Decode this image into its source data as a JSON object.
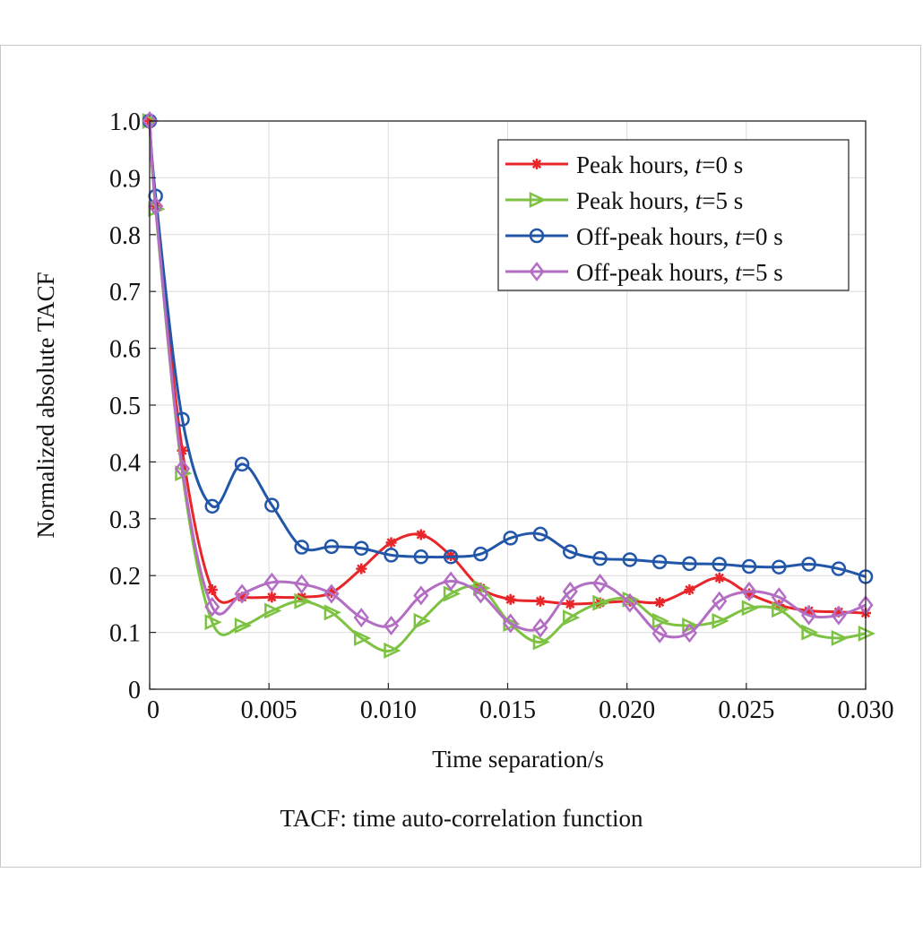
{
  "chart_data": {
    "type": "line",
    "title": "",
    "xlabel": "Time separation/s",
    "ylabel": "Normalized absolute TACF",
    "xlim": [
      0,
      0.03
    ],
    "ylim": [
      0,
      1.0
    ],
    "xticks": [
      0,
      0.005,
      0.01,
      0.015,
      0.02,
      0.025,
      0.03
    ],
    "xtick_labels": [
      "0",
      "0.005",
      "0.010",
      "0.015",
      "0.020",
      "0.025",
      "0.030"
    ],
    "yticks": [
      0,
      0.1,
      0.2,
      0.3,
      0.4,
      0.5,
      0.6,
      0.7,
      0.8,
      0.9,
      1.0
    ],
    "ytick_labels": [
      "0",
      "0.1",
      "0.2",
      "0.3",
      "0.4",
      "0.5",
      "0.6",
      "0.7",
      "0.8",
      "0.9",
      "1.0"
    ],
    "grid": true,
    "legend_position": "top-right",
    "x": [
      0,
      0.00025,
      0.00137,
      0.00262,
      0.00387,
      0.00512,
      0.00637,
      0.00762,
      0.00887,
      0.01012,
      0.01137,
      0.01262,
      0.01387,
      0.01512,
      0.01637,
      0.01762,
      0.01887,
      0.02012,
      0.02137,
      0.02262,
      0.02387,
      0.02512,
      0.02637,
      0.02762,
      0.02887,
      0.03
    ],
    "series": [
      {
        "name_prefix": "Peak hours, ",
        "name_var": "t",
        "name_suffix": "=0 s",
        "color": "#e8262a",
        "marker": "star",
        "values": [
          1.0,
          0.85,
          0.42,
          0.175,
          0.162,
          0.162,
          0.162,
          0.17,
          0.212,
          0.258,
          0.272,
          0.235,
          0.178,
          0.158,
          0.155,
          0.15,
          0.152,
          0.155,
          0.153,
          0.175,
          0.196,
          0.168,
          0.148,
          0.138,
          0.136,
          0.134
        ]
      },
      {
        "name_prefix": "Peak hours, ",
        "name_var": "t",
        "name_suffix": "=5 s",
        "color": "#7dc242",
        "marker": "triangle-right",
        "values": [
          1.0,
          0.845,
          0.38,
          0.118,
          0.112,
          0.138,
          0.155,
          0.135,
          0.09,
          0.068,
          0.12,
          0.168,
          0.178,
          0.115,
          0.083,
          0.126,
          0.152,
          0.158,
          0.12,
          0.112,
          0.12,
          0.143,
          0.14,
          0.1,
          0.09,
          0.098
        ]
      },
      {
        "name_prefix": "Off-peak hours, ",
        "name_var": "t",
        "name_suffix": "=0 s",
        "color": "#2256a8",
        "marker": "circle",
        "values": [
          1.0,
          0.868,
          0.475,
          0.322,
          0.396,
          0.324,
          0.25,
          0.251,
          0.248,
          0.236,
          0.233,
          0.233,
          0.238,
          0.266,
          0.273,
          0.242,
          0.23,
          0.228,
          0.224,
          0.221,
          0.22,
          0.216,
          0.215,
          0.22,
          0.212,
          0.198
        ]
      },
      {
        "name_prefix": "Off-peak hours, ",
        "name_var": "t",
        "name_suffix": "=5 s",
        "color": "#b36ec4",
        "marker": "diamond",
        "values": [
          1.0,
          0.85,
          0.388,
          0.145,
          0.168,
          0.188,
          0.185,
          0.168,
          0.126,
          0.112,
          0.165,
          0.19,
          0.168,
          0.116,
          0.108,
          0.172,
          0.186,
          0.152,
          0.098,
          0.099,
          0.155,
          0.172,
          0.162,
          0.13,
          0.13,
          0.148
        ]
      }
    ]
  },
  "caption": "TACF: time auto-correlation function"
}
